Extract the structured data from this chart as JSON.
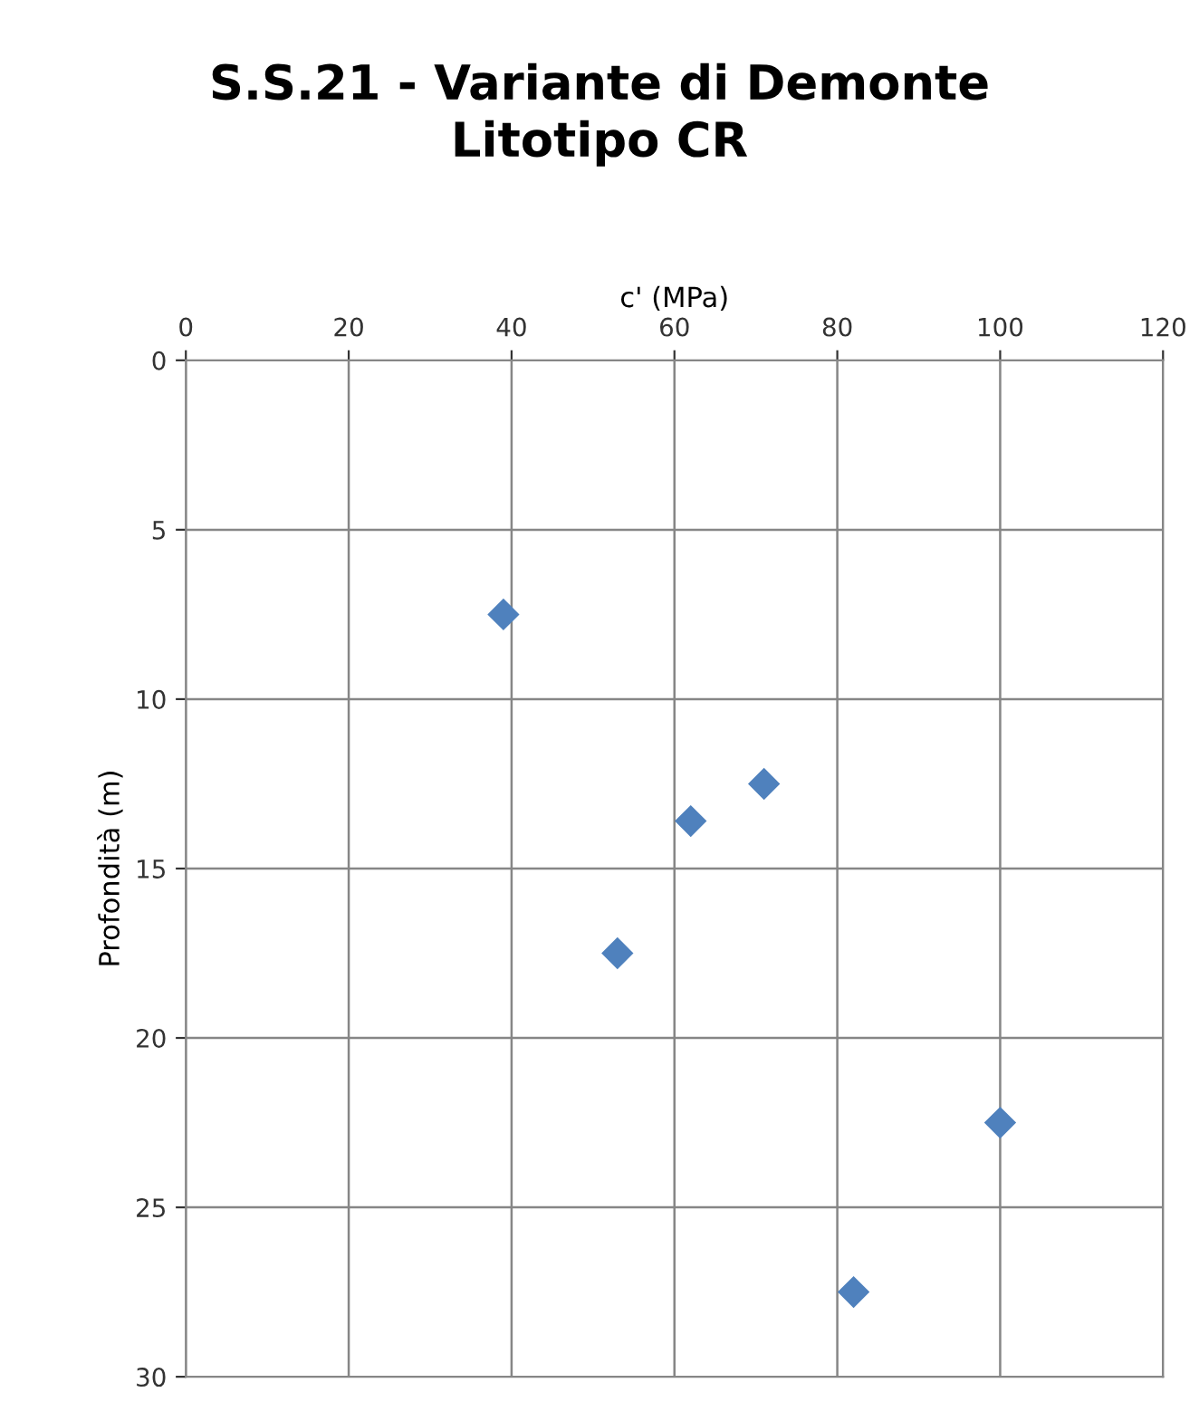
{
  "chart_data": {
    "type": "scatter",
    "title": "S.S.21 - Variante di Demonte\nLitotipo CR",
    "xlabel": "c' (MPa)",
    "ylabel": "Profondità (m)",
    "x": [
      39,
      62,
      71,
      53,
      100,
      82
    ],
    "series": [
      {
        "color": "#4f81bd",
        "values": [
          7.5,
          13.6,
          12.5,
          17.5,
          22.5,
          27.5
        ]
      }
    ],
    "xlim": [
      0,
      120
    ],
    "xticks": [
      0,
      20,
      40,
      60,
      80,
      100,
      120
    ],
    "ylim": [
      30,
      0
    ],
    "yticks": [
      0,
      5,
      10,
      15,
      20,
      25,
      30
    ],
    "grid": true,
    "marker": "diamond",
    "legend": false
  }
}
